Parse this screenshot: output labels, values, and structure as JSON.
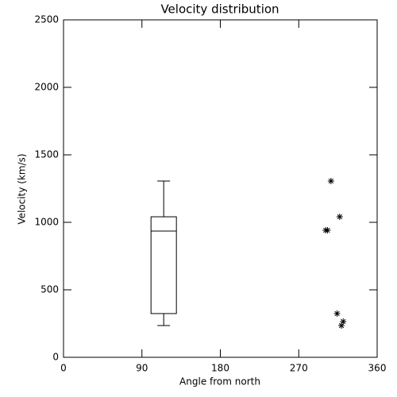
{
  "chart_data": {
    "type": "box",
    "title": "Velocity distribution",
    "x_label": "Angle from north",
    "y_label": "Velocity (km/s)",
    "xlim": [
      0,
      360
    ],
    "xticks": [
      0,
      90,
      180,
      270,
      360
    ],
    "ylim": [
      0,
      2500
    ],
    "yticks": [
      0,
      500,
      1000,
      1500,
      2000,
      2500
    ],
    "color": "#000000",
    "box": {
      "x": 115,
      "whisker_low": 235,
      "q1": 324,
      "median": 935,
      "q3": 1041,
      "whisker_high": 1306
    },
    "series": [
      {
        "type": "scatter",
        "marker": "asterisk",
        "x": [
          307,
          317,
          303,
          301,
          314,
          321,
          319
        ],
        "values": [
          1306,
          1041,
          941,
          941,
          324,
          265,
          235
        ]
      }
    ]
  }
}
